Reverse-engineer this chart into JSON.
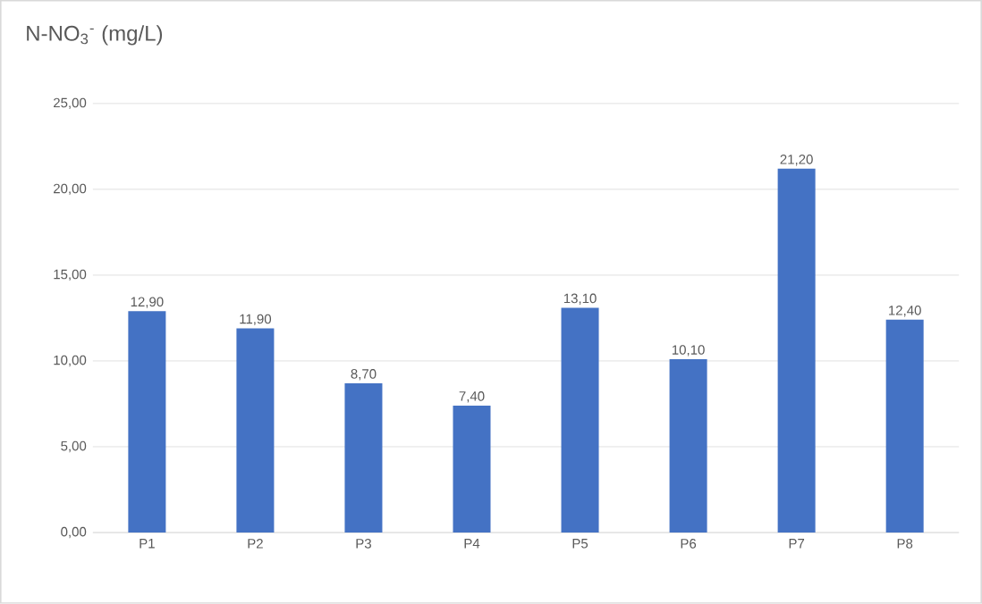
{
  "chart_data": {
    "type": "bar",
    "title": "N-NO$_{3}$$^{-}$ (mg/L)",
    "categories": [
      "P1",
      "P2",
      "P3",
      "P4",
      "P5",
      "P6",
      "P7",
      "P8"
    ],
    "values": [
      12.9,
      11.9,
      8.7,
      7.4,
      13.1,
      10.1,
      21.2,
      12.4
    ],
    "value_labels": [
      "12,90",
      "11,90",
      "8,70",
      "7,40",
      "13,10",
      "10,10",
      "21,20",
      "12,40"
    ],
    "color": "#4472c4",
    "ylim": [
      0,
      25
    ],
    "yticks": [
      {
        "value": 0,
        "label": "0,00"
      },
      {
        "value": 5,
        "label": "5,00"
      },
      {
        "value": 10,
        "label": "10,00"
      },
      {
        "value": 15,
        "label": "15,00"
      },
      {
        "value": 20,
        "label": "20,00"
      },
      {
        "value": 25,
        "label": "25,00"
      }
    ],
    "grid": "y"
  }
}
